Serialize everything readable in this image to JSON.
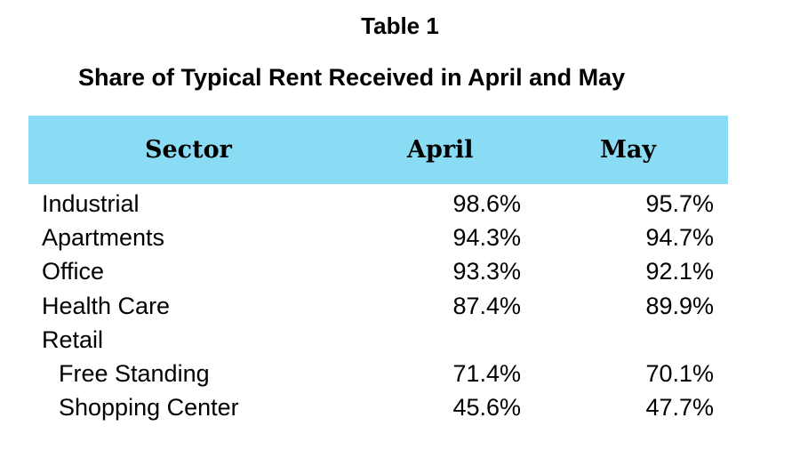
{
  "table_label": "Table 1",
  "title": "Share of Typical Rent Received in April and May",
  "colors": {
    "header_band": "#8adcf5",
    "text": "#000000",
    "background": "#ffffff"
  },
  "chart_data": {
    "type": "table",
    "title": "Share of Typical Rent Received in April and May",
    "columns": [
      "Sector",
      "April",
      "May"
    ],
    "rows": [
      {
        "sector": "Industrial",
        "april": "98.6%",
        "may": "95.7%",
        "indent": false
      },
      {
        "sector": "Apartments",
        "april": "94.3%",
        "may": "94.7%",
        "indent": false
      },
      {
        "sector": "Office",
        "april": "93.3%",
        "may": "92.1%",
        "indent": false
      },
      {
        "sector": "Health Care",
        "april": "87.4%",
        "may": "89.9%",
        "indent": false
      },
      {
        "sector": "Retail",
        "april": "",
        "may": "",
        "indent": false
      },
      {
        "sector": "Free Standing",
        "april": "71.4%",
        "may": "70.1%",
        "indent": true
      },
      {
        "sector": "Shopping Center",
        "april": "45.6%",
        "may": "47.7%",
        "indent": true
      }
    ]
  }
}
